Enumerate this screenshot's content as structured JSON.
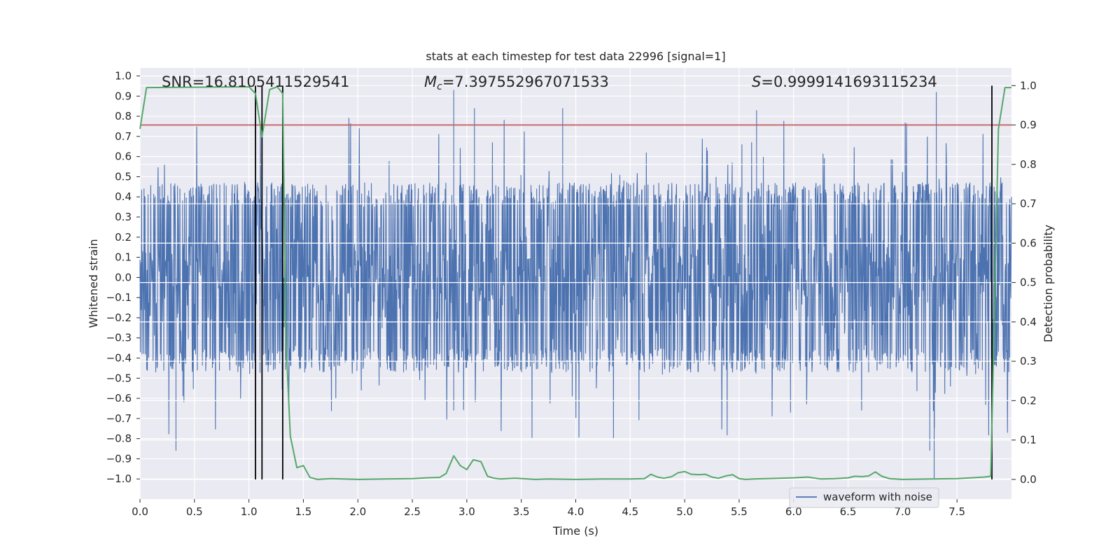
{
  "chart_data": {
    "type": "line",
    "title": "stats at each timestep for test data 22996 [signal=1]",
    "xlabel": "Time (s)",
    "ylabel_left": "Whitened strain",
    "ylabel_right": "Detection probability",
    "xlim": [
      0.0,
      8.0
    ],
    "ylim_left": [
      -1.1,
      1.04
    ],
    "ylim_right": [
      -0.05,
      1.045
    ],
    "x_ticks": [
      "0.0",
      "0.5",
      "1.0",
      "1.5",
      "2.0",
      "2.5",
      "3.0",
      "3.5",
      "4.0",
      "4.5",
      "5.0",
      "5.5",
      "6.0",
      "6.5",
      "7.0",
      "7.5"
    ],
    "x_tick_values": [
      0.0,
      0.5,
      1.0,
      1.5,
      2.0,
      2.5,
      3.0,
      3.5,
      4.0,
      4.5,
      5.0,
      5.5,
      6.0,
      6.5,
      7.0,
      7.5
    ],
    "y_left_ticks": [
      "1.0",
      "0.9",
      "0.8",
      "0.7",
      "0.6",
      "0.5",
      "0.4",
      "0.3",
      "0.2",
      "0.1",
      "0.0",
      "−0.1",
      "−0.2",
      "−0.3",
      "−0.4",
      "−0.5",
      "−0.6",
      "−0.7",
      "−0.8",
      "−0.9",
      "−1.0"
    ],
    "y_left_tick_values": [
      1.0,
      0.9,
      0.8,
      0.7,
      0.6,
      0.5,
      0.4,
      0.3,
      0.2,
      0.1,
      0.0,
      -0.1,
      -0.2,
      -0.3,
      -0.4,
      -0.5,
      -0.6,
      -0.7,
      -0.8,
      -0.9,
      -1.0
    ],
    "y_right_ticks": [
      "1.0",
      "0.9",
      "0.8",
      "0.7",
      "0.6",
      "0.5",
      "0.4",
      "0.3",
      "0.2",
      "0.1",
      "0.0"
    ],
    "y_right_tick_values": [
      1.0,
      0.9,
      0.8,
      0.7,
      0.6,
      0.5,
      0.4,
      0.3,
      0.2,
      0.1,
      0.0
    ],
    "annotations": {
      "snr": "SNR=16.8105411529541",
      "mc_symbol": "M",
      "mc_subscript": "c",
      "mc_value": "=7.397552967071533",
      "s_symbol": "S",
      "s_value": "=0.9999141693115234"
    },
    "legend": {
      "label": "waveform with noise",
      "location": "lower right"
    },
    "threshold": {
      "value": 0.9,
      "axis": "right",
      "color": "#c44e52"
    },
    "vertical_markers": [
      1.06,
      1.12,
      1.31,
      7.82
    ],
    "waveform": {
      "name": "waveform with noise",
      "color": "#4c72b0",
      "duration_s": 8.0,
      "core_amplitude": 0.35,
      "typical_peak": 0.6,
      "max_peak": 0.93,
      "min_trough": -1.0
    },
    "series": [
      {
        "name": "Detection probability",
        "color": "#55a868",
        "axis": "right",
        "x": [
          0.0,
          0.06,
          1.0,
          1.06,
          1.12,
          1.19,
          1.26,
          1.31,
          1.34,
          1.38,
          1.44,
          1.5,
          1.56,
          1.63,
          1.75,
          2.0,
          2.25,
          2.5,
          2.63,
          2.75,
          2.81,
          2.88,
          2.94,
          3.0,
          3.06,
          3.13,
          3.19,
          3.25,
          3.31,
          3.44,
          3.63,
          3.75,
          4.0,
          4.25,
          4.5,
          4.63,
          4.69,
          4.75,
          4.81,
          4.88,
          4.94,
          5.0,
          5.06,
          5.13,
          5.19,
          5.25,
          5.31,
          5.38,
          5.44,
          5.5,
          5.56,
          5.63,
          5.75,
          6.0,
          6.13,
          6.25,
          6.38,
          6.5,
          6.56,
          6.63,
          6.69,
          6.75,
          6.81,
          6.88,
          7.0,
          7.25,
          7.5,
          7.63,
          7.75,
          7.81,
          7.88,
          7.94,
          8.0
        ],
        "y": [
          0.89,
          0.995,
          0.997,
          0.98,
          0.87,
          0.99,
          0.997,
          0.98,
          0.35,
          0.11,
          0.03,
          0.035,
          0.005,
          0.0,
          0.002,
          0.0,
          0.001,
          0.002,
          0.004,
          0.005,
          0.015,
          0.06,
          0.035,
          0.025,
          0.05,
          0.045,
          0.008,
          0.003,
          0.001,
          0.003,
          0.0,
          0.001,
          0.0,
          0.001,
          0.001,
          0.002,
          0.013,
          0.006,
          0.003,
          0.007,
          0.017,
          0.02,
          0.013,
          0.012,
          0.013,
          0.006,
          0.003,
          0.009,
          0.012,
          0.002,
          0.0,
          0.001,
          0.002,
          0.004,
          0.006,
          0.001,
          0.002,
          0.004,
          0.008,
          0.007,
          0.009,
          0.019,
          0.008,
          0.002,
          0.0,
          0.001,
          0.002,
          0.004,
          0.006,
          0.008,
          0.89,
          0.995,
          0.995
        ]
      }
    ]
  }
}
